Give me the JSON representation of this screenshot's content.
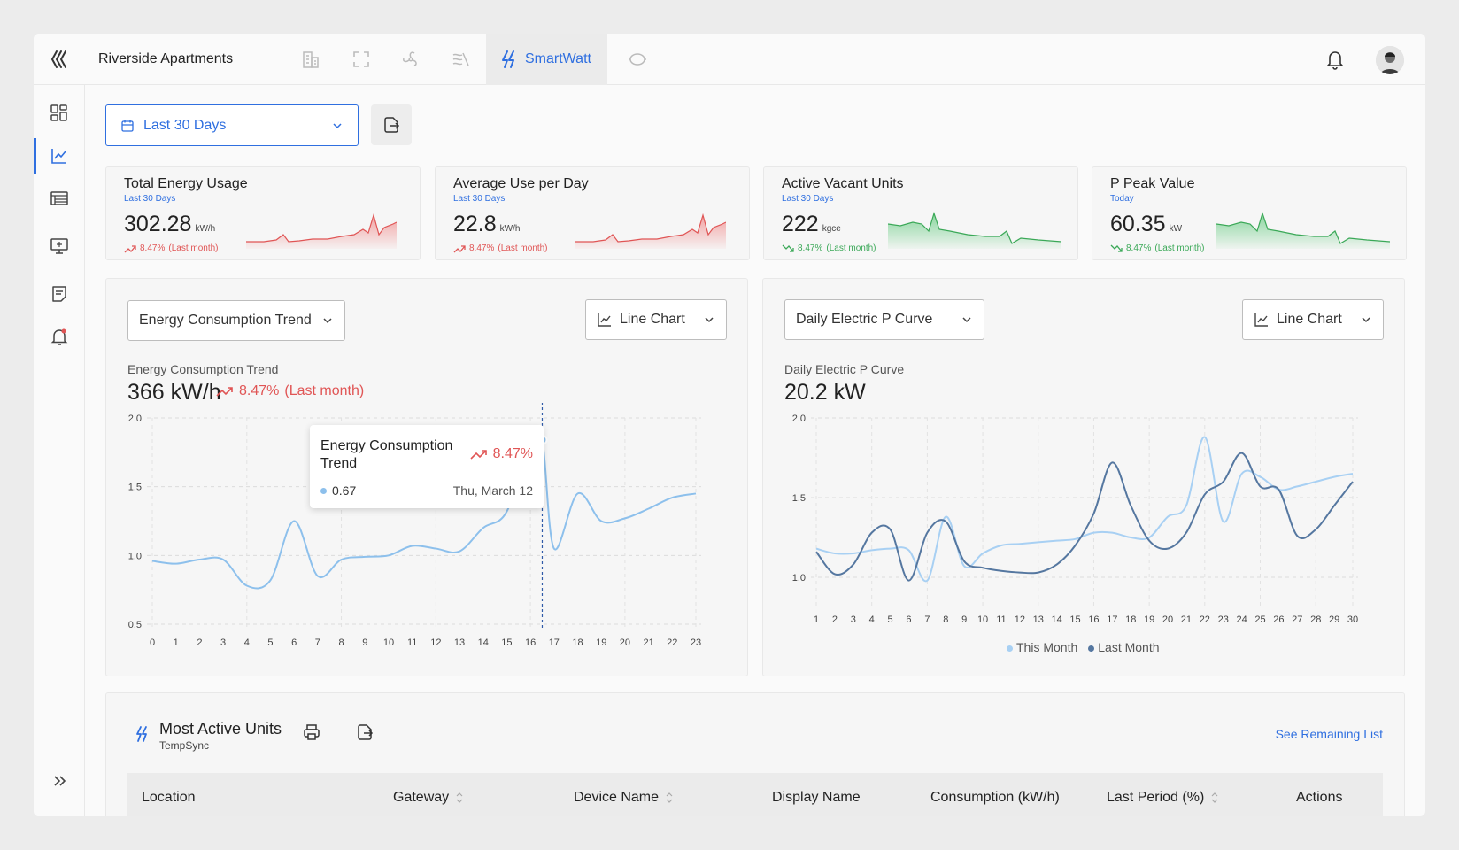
{
  "app": {
    "site_name": "Riverside Apartments",
    "active_module": "SmartWatt",
    "accent": "#2f6fe0"
  },
  "toolbar": {
    "date_range": "Last 30 Days"
  },
  "kpis": [
    {
      "title": "Total Energy Usage",
      "period": "Last 30 Days",
      "value": "302.28",
      "unit": "kW/h",
      "change": "8.47%",
      "change_note": "(Last month)",
      "trend": "up"
    },
    {
      "title": "Average Use per Day",
      "period": "Last 30 Days",
      "value": "22.8",
      "unit": "kW/h",
      "change": "8.47%",
      "change_note": "(Last month)",
      "trend": "up"
    },
    {
      "title": "Active Vacant Units",
      "period": "Last 30 Days",
      "value": "222",
      "unit": "kgce",
      "change": "8.47%",
      "change_note": "(Last month)",
      "trend": "down"
    },
    {
      "title": "P Peak Value",
      "period": "Today",
      "value": "60.35",
      "unit": "kW",
      "change": "8.47%",
      "change_note": "(Last month)",
      "trend": "down"
    }
  ],
  "left_panel": {
    "metric_select": "Energy Consumption Trend",
    "chart_type_select": "Line Chart",
    "label": "Energy Consumption Trend",
    "value": "366 kW/h",
    "change": "8.47%",
    "change_note": "(Last month)",
    "tooltip": {
      "title": "Energy Consumption Trend",
      "change": "8.47%",
      "value": "0.67",
      "date": "Thu, March 12"
    }
  },
  "right_panel": {
    "metric_select": "Daily Electric P Curve",
    "chart_type_select": "Line Chart",
    "label": "Daily Electric P Curve",
    "value": "20.2 kW",
    "legend": [
      "This Month",
      "Last Month"
    ]
  },
  "chart_data": [
    {
      "type": "line",
      "title": "Energy Consumption Trend",
      "x": [
        0,
        1,
        2,
        3,
        4,
        5,
        6,
        7,
        8,
        9,
        10,
        11,
        12,
        13,
        14,
        15,
        16,
        16.5,
        17,
        18,
        19,
        20,
        21,
        22,
        23
      ],
      "series": [
        {
          "values": [
            0.96,
            0.94,
            0.97,
            0.97,
            0.78,
            0.82,
            1.25,
            0.85,
            0.97,
            0.99,
            1.0,
            1.07,
            1.05,
            1.03,
            1.2,
            1.32,
            1.84,
            1.84,
            1.05,
            1.45,
            1.25,
            1.27,
            1.34,
            1.42,
            1.45
          ],
          "color": "#8dc0ec"
        }
      ],
      "xticks": [
        0,
        1,
        2,
        3,
        4,
        5,
        6,
        7,
        8,
        9,
        10,
        11,
        12,
        13,
        14,
        15,
        16,
        17,
        18,
        19,
        20,
        21,
        22,
        23
      ],
      "yticks": [
        0.5,
        1.0,
        1.5,
        2.0
      ],
      "ylim": [
        0.5,
        2.0
      ],
      "highlight_x": 16.5,
      "grid": true
    },
    {
      "type": "line",
      "title": "Daily Electric P Curve",
      "x": [
        1,
        2,
        3,
        4,
        5,
        6,
        7,
        8,
        9,
        10,
        11,
        12,
        13,
        14,
        15,
        16,
        17,
        18,
        19,
        20,
        21,
        22,
        23,
        24,
        25,
        26,
        27,
        28,
        29,
        30
      ],
      "series": [
        {
          "name": "This Month",
          "color": "#a8d0f3",
          "values": [
            1.18,
            1.15,
            1.15,
            1.17,
            1.18,
            1.17,
            0.98,
            1.38,
            1.07,
            1.15,
            1.2,
            1.21,
            1.22,
            1.23,
            1.24,
            1.28,
            1.28,
            1.25,
            1.25,
            1.38,
            1.45,
            1.88,
            1.35,
            1.65,
            1.63,
            1.55,
            1.57,
            1.6,
            1.63,
            1.65
          ]
        },
        {
          "name": "Last Month",
          "color": "#5577a0",
          "values": [
            1.16,
            1.02,
            1.08,
            1.28,
            1.3,
            0.98,
            1.28,
            1.35,
            1.1,
            1.06,
            1.04,
            1.03,
            1.03,
            1.08,
            1.2,
            1.4,
            1.72,
            1.45,
            1.23,
            1.18,
            1.28,
            1.52,
            1.6,
            1.78,
            1.57,
            1.55,
            1.26,
            1.3,
            1.45,
            1.6
          ]
        }
      ],
      "xticks": [
        1,
        2,
        3,
        4,
        5,
        6,
        7,
        8,
        9,
        10,
        11,
        12,
        13,
        14,
        15,
        16,
        17,
        18,
        19,
        20,
        21,
        22,
        23,
        24,
        25,
        26,
        27,
        28,
        29,
        30
      ],
      "yticks": [
        1.0,
        1.5,
        2.0
      ],
      "ylim": [
        0.85,
        2.0
      ],
      "legend": "bottom",
      "grid": true
    }
  ],
  "table": {
    "title": "Most Active Units",
    "subtitle": "TempSync",
    "link": "See Remaining List",
    "columns": [
      "Location",
      "Gateway",
      "Device Name",
      "Display Name",
      "Consumption (kW/h)",
      "Last Period (%)",
      "Actions"
    ]
  }
}
